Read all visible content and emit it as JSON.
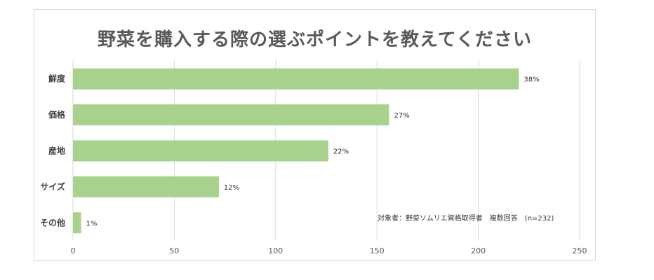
{
  "chart_data": {
    "type": "bar",
    "orientation": "horizontal",
    "title": "野菜を購入する際の選ぶポイントを教えてください",
    "categories": [
      "鮮度",
      "価格",
      "産地",
      "サイズ",
      "その他"
    ],
    "values": [
      220,
      156,
      126,
      72,
      4
    ],
    "data_labels": [
      "38%",
      "27%",
      "22%",
      "12%",
      "1%"
    ],
    "xlim": [
      0,
      250
    ],
    "xticks": [
      0,
      50,
      100,
      150,
      200,
      250
    ],
    "grid": true,
    "bar_color": "#a9d18e",
    "annotation": "対象者：野菜ソムリエ資格取得者　複数回答　(n=232)"
  }
}
